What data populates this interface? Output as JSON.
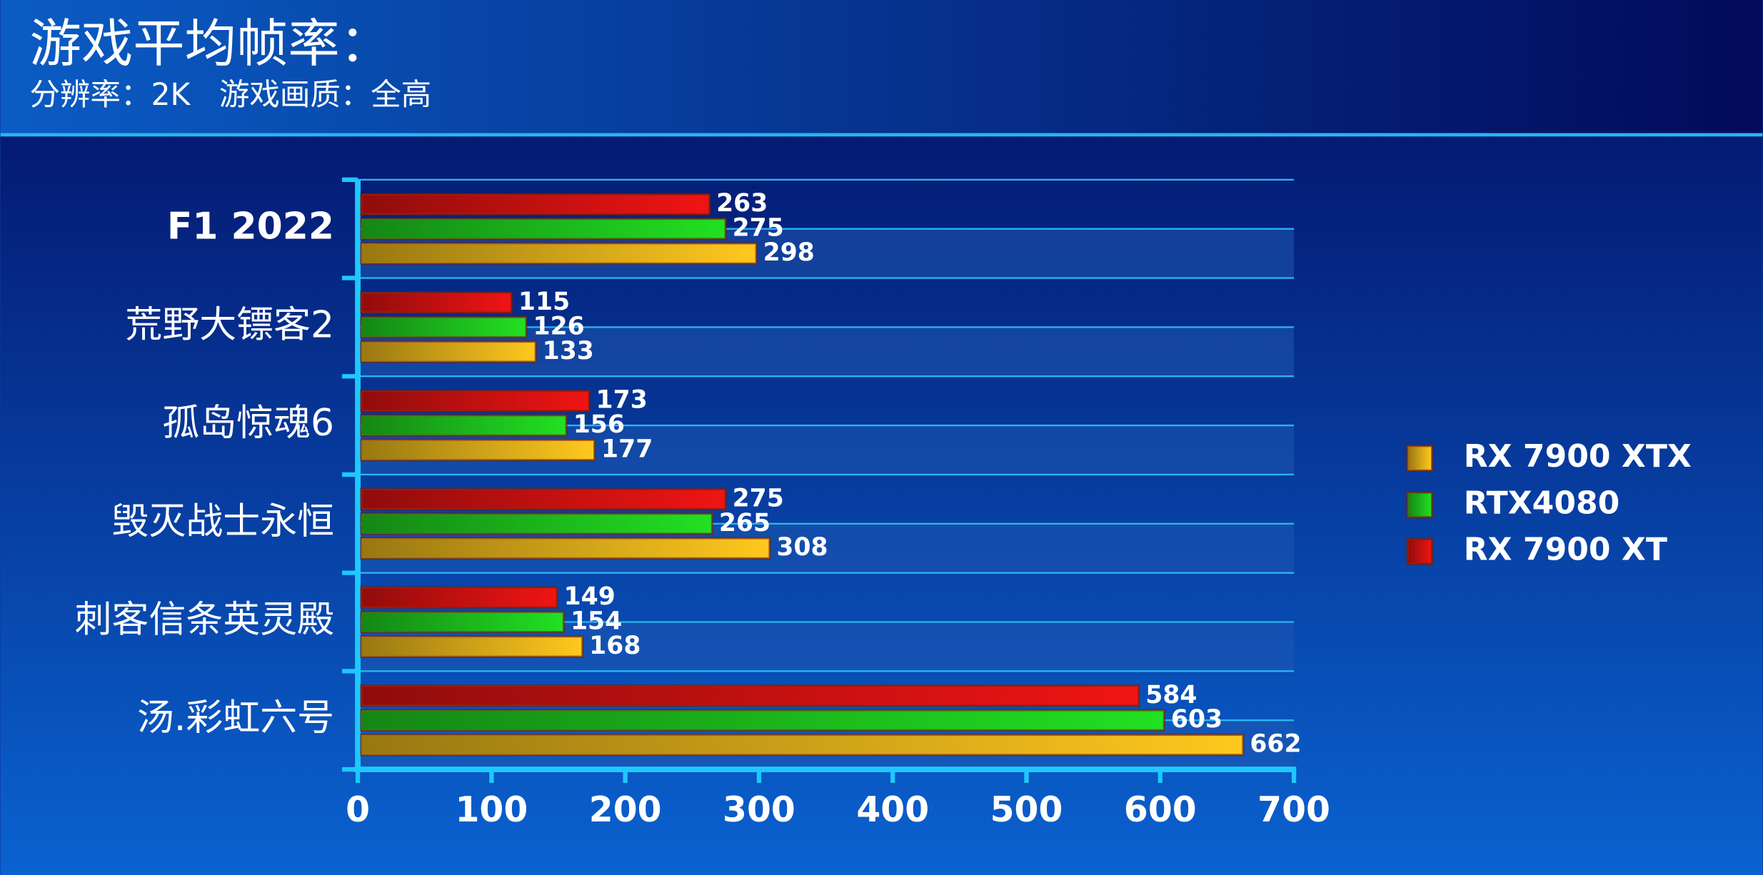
{
  "chart_data": {
    "type": "bar",
    "orientation": "horizontal",
    "title": "游戏平均帧率：",
    "subtitle": "分辨率：2K   游戏画质：全高",
    "categories": [
      "F1 2022",
      "荒野大镖客2",
      "孤岛惊魂6",
      "毁灭战士永恒",
      "刺客信条英灵殿",
      "汤.彩虹六号"
    ],
    "series": [
      {
        "name": "RX 7900 XTX",
        "color": "#ffc81e",
        "values": [
          298,
          133,
          177,
          308,
          168,
          662
        ]
      },
      {
        "name": "RTX4080",
        "color": "#22e022",
        "values": [
          275,
          126,
          156,
          265,
          154,
          603
        ]
      },
      {
        "name": "RX 7900 XT",
        "color": "#f01414",
        "values": [
          263,
          115,
          173,
          275,
          149,
          584
        ]
      }
    ],
    "xlim": [
      0,
      700
    ],
    "xticks": [
      0,
      100,
      200,
      300,
      400,
      500,
      600,
      700
    ],
    "legend": "right"
  }
}
